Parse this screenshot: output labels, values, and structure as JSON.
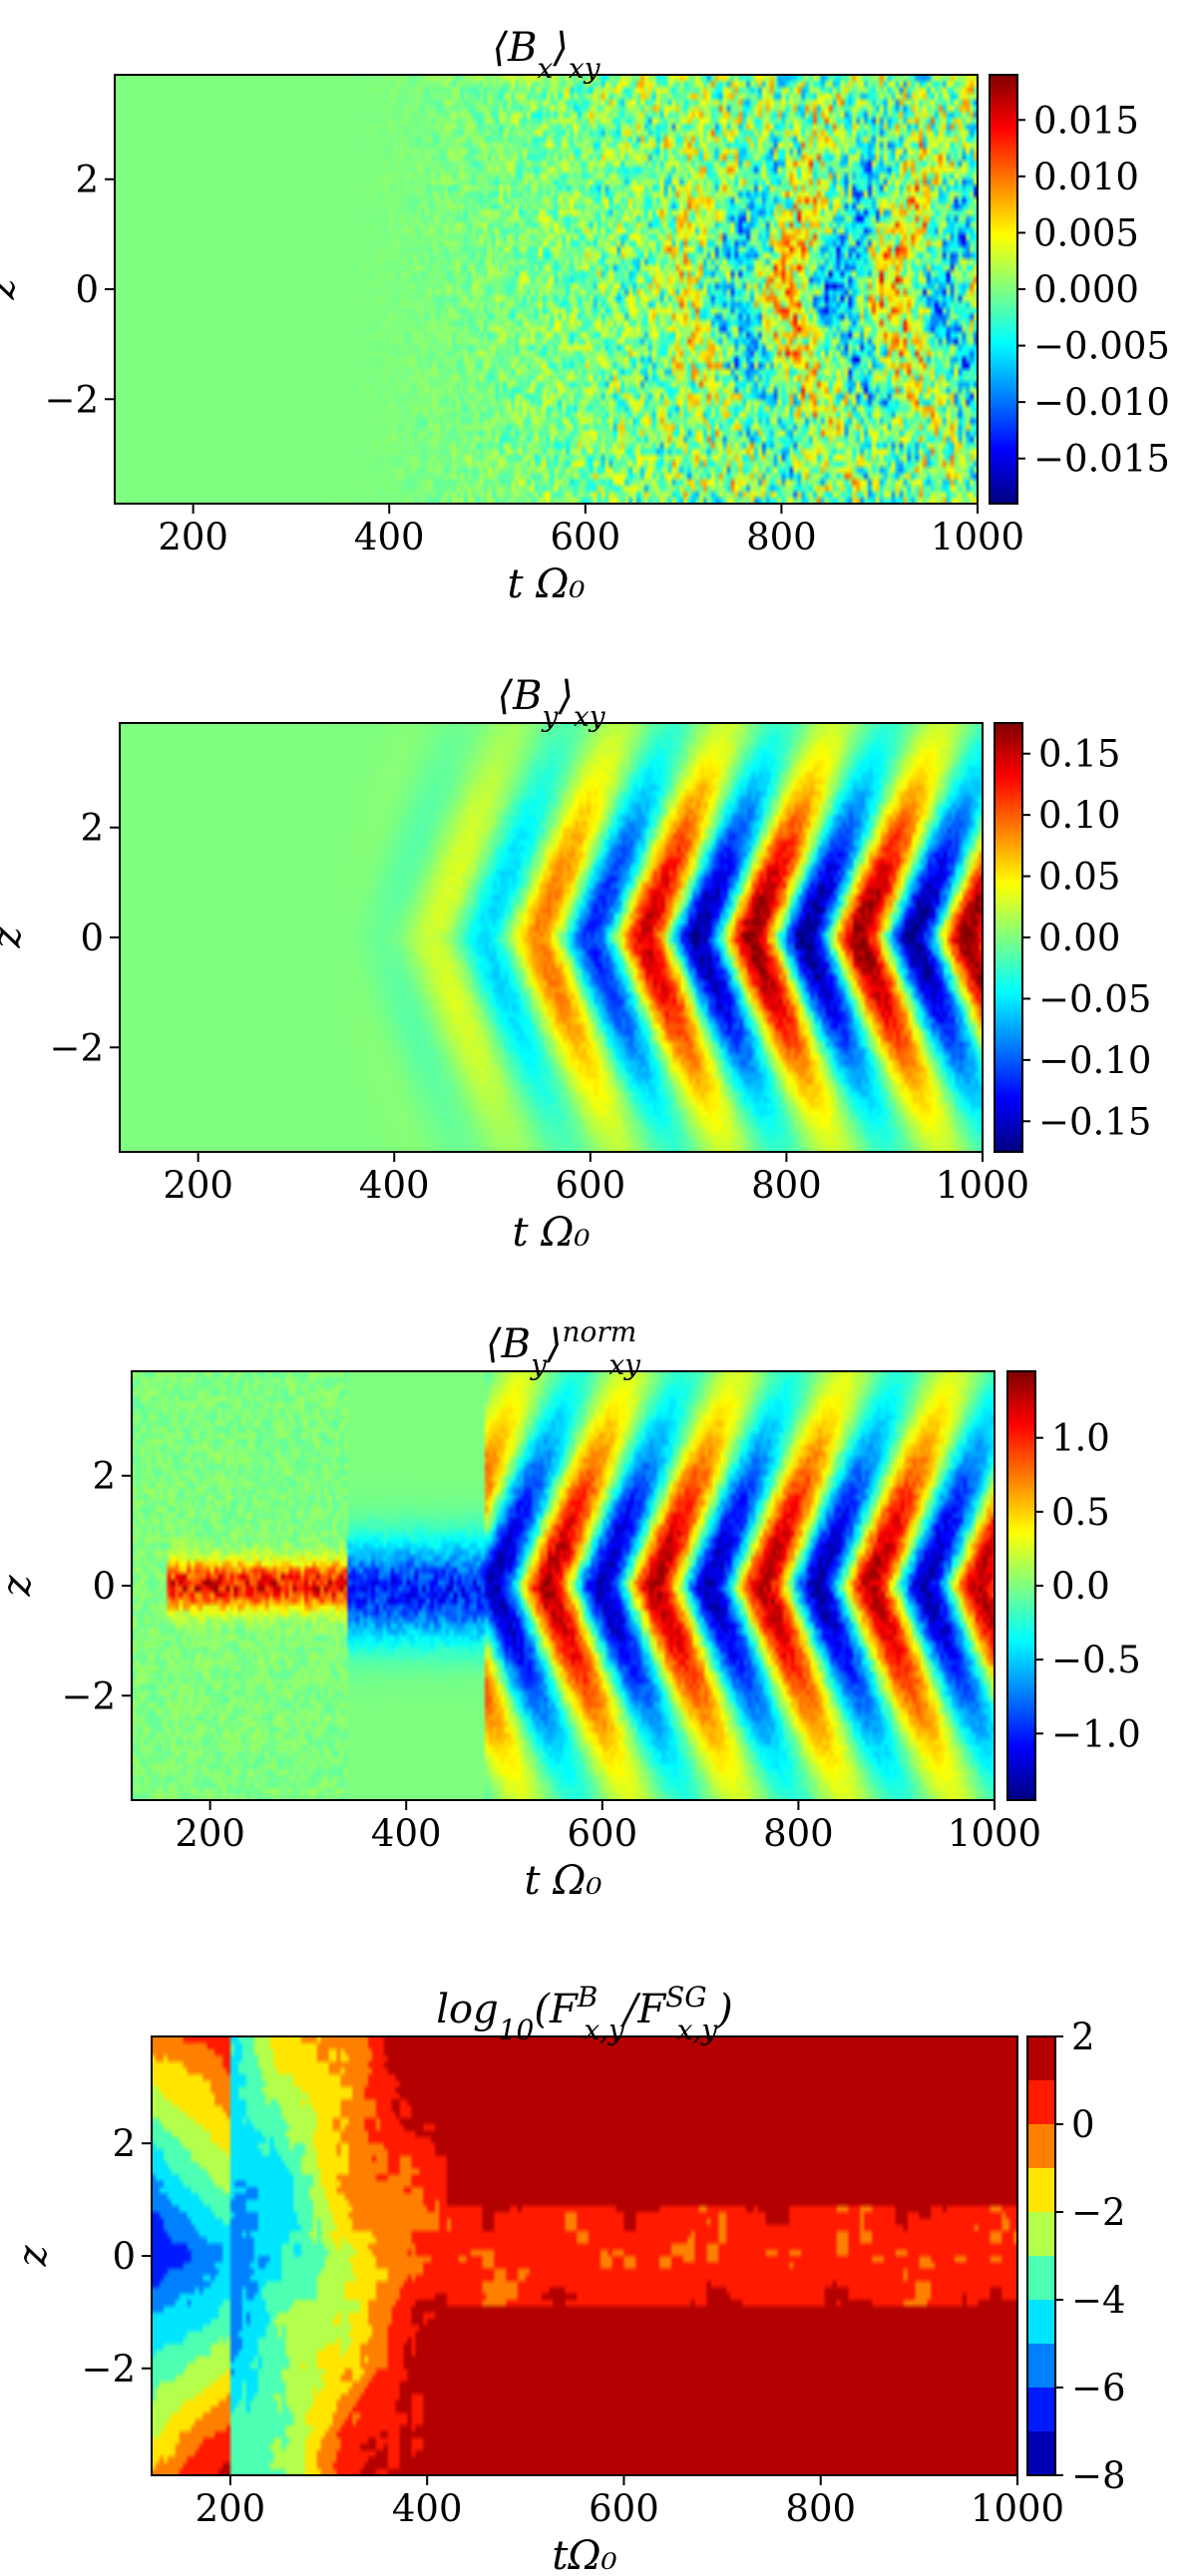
{
  "chart_data": [
    {
      "type": "heatmap",
      "title_html": "⟨<tspan font-style='italic'>B</tspan><tspan font-style='italic' baseline-shift='sub' font-size='70%'>x</tspan>⟩<tspan font-style='italic' baseline-shift='sub' font-size='70%'>xy</tspan>",
      "xlabel": "t Ω₀",
      "ylabel": "z",
      "xlim": [
        120,
        1000
      ],
      "ylim": [
        -3.9,
        3.9
      ],
      "xticks": [
        200,
        400,
        600,
        800,
        1000
      ],
      "yticks": [
        2,
        0,
        -2
      ],
      "colorbar": {
        "min": -0.019,
        "max": 0.019,
        "ticks": [
          0.015,
          0.01,
          0.005,
          0.0,
          -0.005,
          -0.01,
          -0.015
        ],
        "labels": [
          "0.015",
          "0.010",
          "0.005",
          "0.000",
          "−0.005",
          "−0.010",
          "−0.015"
        ]
      },
      "colormap": "jet",
      "pattern": "small-scale noise growing after tΩ₀≈350, chevron dynamo pattern after ≈650",
      "amplitude": 0.012,
      "period": 110,
      "seed": 3
    },
    {
      "type": "heatmap",
      "title_html": "⟨<tspan font-style='italic'>B</tspan><tspan font-style='italic' baseline-shift='sub' font-size='70%'>y</tspan>⟩<tspan font-style='italic' baseline-shift='sub' font-size='70%'>xy</tspan>",
      "xlabel": "t Ω₀",
      "ylabel": "z",
      "xlim": [
        120,
        1000
      ],
      "ylim": [
        -3.9,
        3.9
      ],
      "xticks": [
        200,
        400,
        600,
        800,
        1000
      ],
      "yticks": [
        2,
        0,
        -2
      ],
      "colorbar": {
        "min": -0.175,
        "max": 0.175,
        "ticks": [
          0.15,
          0.1,
          0.05,
          0.0,
          -0.05,
          -0.1,
          -0.15
        ],
        "labels": [
          "0.15",
          "0.10",
          "0.05",
          "0.00",
          "−0.05",
          "−0.10",
          "−0.15"
        ]
      },
      "colormap": "jet",
      "pattern": "butterfly chevrons with period ≈110 growing in amplitude",
      "amplitude": 0.17,
      "period": 110,
      "seed": 7
    },
    {
      "type": "heatmap",
      "title_html": "⟨<tspan font-style='italic'>B</tspan><tspan font-style='italic' baseline-shift='sub' font-size='70%'>y</tspan>⟩<tspan font-style='italic' baseline-shift='super' font-size='70%'>norm</tspan><tspan font-style='italic' baseline-shift='sub' font-size='70%' dx='-28'>xy</tspan>",
      "xlabel": "t Ω₀",
      "ylabel": "z",
      "xlim": [
        120,
        1000
      ],
      "ylim": [
        -3.9,
        3.9
      ],
      "xticks": [
        200,
        400,
        600,
        800,
        1000
      ],
      "yticks": [
        2,
        0,
        -2
      ],
      "colorbar": {
        "min": -1.45,
        "max": 1.45,
        "ticks": [
          1.0,
          0.5,
          0.0,
          -0.5,
          -1.0
        ],
        "labels": [
          "1.0",
          "0.5",
          "0.0",
          "−0.5",
          "−1.0"
        ]
      },
      "colormap": "jet",
      "pattern": "normalized field: early positive midplane band 160–330, negative 350–470, then chevrons",
      "amplitude": 1.3,
      "period": 110,
      "seed": 11
    },
    {
      "type": "heatmap",
      "title_html": "<tspan font-style='italic'>log</tspan><tspan baseline-shift='sub' font-size='70%'>10</tspan>(<tspan font-style='italic'>F</tspan><tspan font-style='italic' baseline-shift='super' font-size='70%'>B</tspan><tspan font-style='italic' baseline-shift='sub' font-size='70%' dx='-14'>x,y</tspan>/<tspan font-style='italic'>F</tspan><tspan font-style='italic' baseline-shift='super' font-size='70%'>SG</tspan><tspan font-style='italic' baseline-shift='sub' font-size='70%' dx='-30'>x,y</tspan>)",
      "xlabel": "tΩ₀",
      "ylabel": "z",
      "xlim": [
        120,
        1000
      ],
      "ylim": [
        -3.9,
        3.9
      ],
      "xticks": [
        200,
        400,
        600,
        800,
        1000
      ],
      "yticks": [
        2,
        0,
        -2
      ],
      "colorbar": {
        "min": -8,
        "max": 2,
        "ticks": [
          2,
          0,
          -2,
          -4,
          -6,
          -8
        ],
        "labels": [
          "2",
          "0",
          "−2",
          "−4",
          "−6",
          "−8"
        ],
        "levels": [
          -8,
          -7,
          -6,
          -5,
          -4,
          -3,
          -2,
          -1,
          0,
          1,
          2
        ]
      },
      "colormap": "jet-discrete",
      "pattern": "filled contours: ≈−7 at t≈130 midplane rising to ≈+1.5 at large |z| for t>650",
      "seed": 19
    }
  ]
}
